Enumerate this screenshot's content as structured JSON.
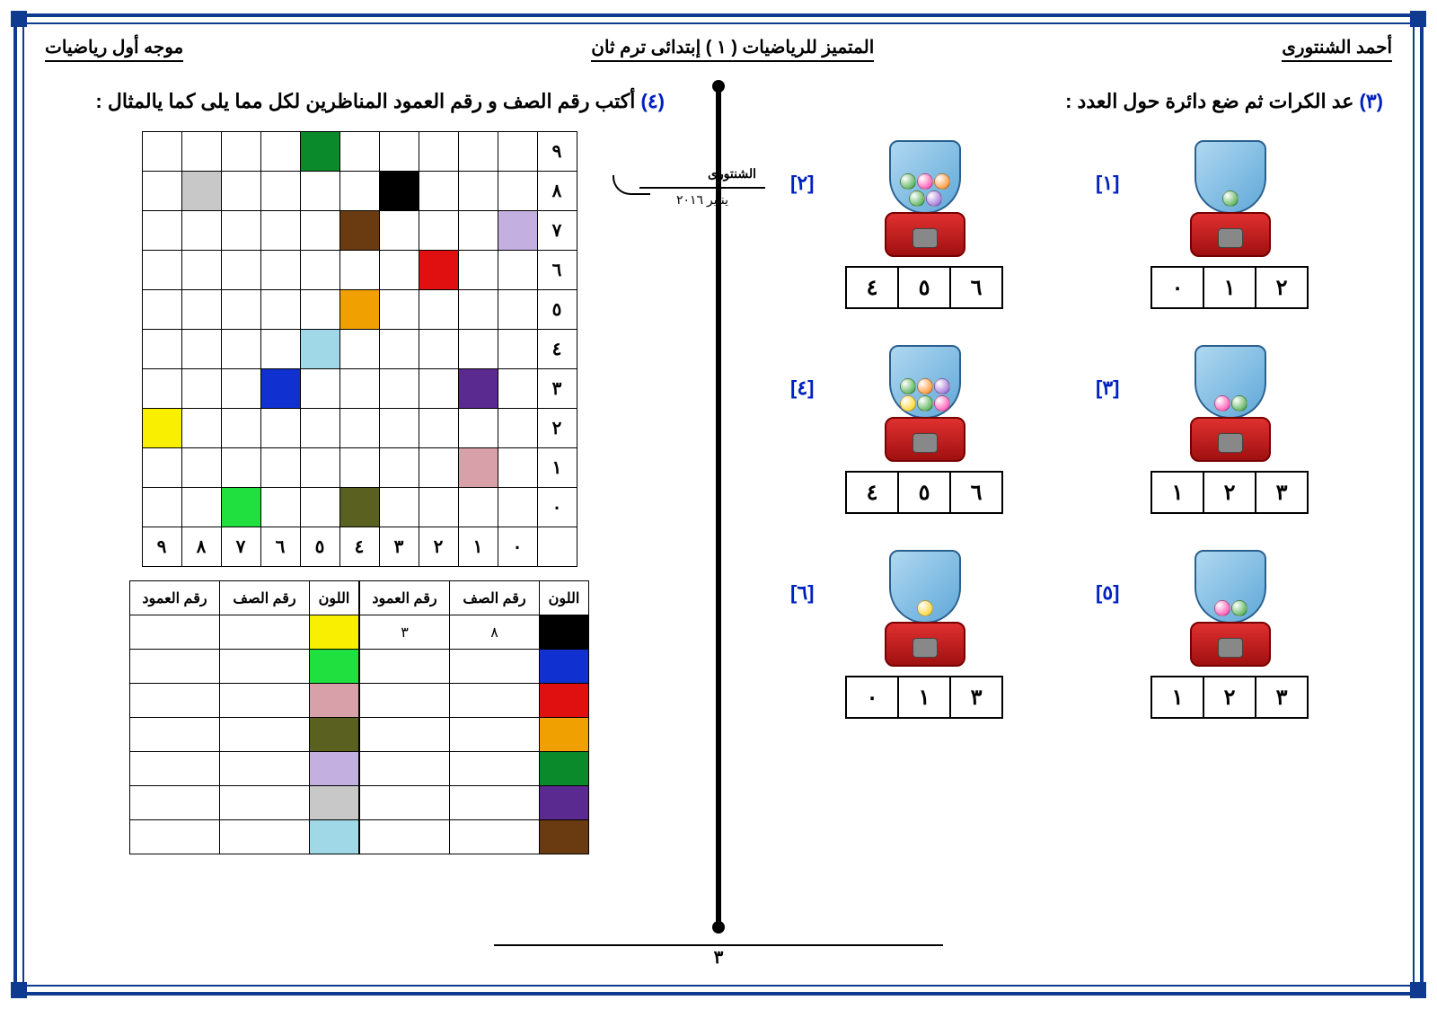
{
  "header": {
    "author": "أحمد الشنتورى",
    "title": "المتميز للرياضيات ( ١ )  إبتدائى ترم  ثان",
    "role": "موجه أول رياضيات"
  },
  "q3": {
    "num": "(٣)",
    "title": "عد الكرات ثم ضع دائرة حول العدد :",
    "items": [
      {
        "label": "[١]",
        "balls": [
          "#2a9d2a"
        ],
        "choices": [
          "٢",
          "١",
          "٠"
        ]
      },
      {
        "label": "[٢]",
        "balls": [
          "#ff7a00",
          "#ff2aa0",
          "#2a9d2a",
          "#8a4fd0",
          "#2a9d2a"
        ],
        "choices": [
          "٦",
          "٥",
          "٤"
        ]
      },
      {
        "label": "[٣]",
        "balls": [
          "#2a9d2a",
          "#ff2aa0"
        ],
        "choices": [
          "٣",
          "٢",
          "١"
        ]
      },
      {
        "label": "[٤]",
        "balls": [
          "#8a4fd0",
          "#ff7a00",
          "#2a9d2a",
          "#ff2aa0",
          "#2a9d2a",
          "#ffcc00"
        ],
        "choices": [
          "٦",
          "٥",
          "٤"
        ]
      },
      {
        "label": "[٥]",
        "balls": [
          "#2a9d2a",
          "#ff2aa0"
        ],
        "choices": [
          "٣",
          "٢",
          "١"
        ]
      },
      {
        "label": "[٦]",
        "balls": [
          "#ffcc00"
        ],
        "choices": [
          "٣",
          "١",
          "٠"
        ]
      }
    ]
  },
  "q4": {
    "num": "(٤)",
    "title": "أكتب رقم الصف و رقم العمود المناظرين لكل مما يلى  كما يالمثال :",
    "grid": {
      "cols_label": [
        "٠",
        "١",
        "٢",
        "٣",
        "٤",
        "٥",
        "٦",
        "٧",
        "٨",
        "٩"
      ],
      "rows_label": [
        "٩",
        "٨",
        "٧",
        "٦",
        "٥",
        "٤",
        "٣",
        "٢",
        "١",
        "٠"
      ],
      "cells": [
        {
          "r": 0,
          "c": 5,
          "color": "#0a8a2a"
        },
        {
          "r": 1,
          "c": 3,
          "color": "#000000"
        },
        {
          "r": 1,
          "c": 8,
          "color": "#c8c8c8"
        },
        {
          "r": 2,
          "c": 0,
          "color": "#c4b0e0"
        },
        {
          "r": 2,
          "c": 4,
          "color": "#6a3a10"
        },
        {
          "r": 3,
          "c": 2,
          "color": "#e01010"
        },
        {
          "r": 4,
          "c": 4,
          "color": "#f0a000"
        },
        {
          "r": 5,
          "c": 5,
          "color": "#a0d8e8"
        },
        {
          "r": 6,
          "c": 1,
          "color": "#5a2a90"
        },
        {
          "r": 6,
          "c": 6,
          "color": "#1030d0"
        },
        {
          "r": 7,
          "c": 9,
          "color": "#f8f000"
        },
        {
          "r": 8,
          "c": 1,
          "color": "#d8a0a8"
        },
        {
          "r": 9,
          "c": 4,
          "color": "#5a6020"
        },
        {
          "r": 9,
          "c": 7,
          "color": "#20e040"
        }
      ]
    },
    "answers": {
      "headers": [
        "اللون",
        "رقم الصف",
        "رقم العمود"
      ],
      "right": [
        {
          "color": "#000000",
          "row": "٨",
          "col": "٣"
        },
        {
          "color": "#1030d0",
          "row": "",
          "col": ""
        },
        {
          "color": "#e01010",
          "row": "",
          "col": ""
        },
        {
          "color": "#f0a000",
          "row": "",
          "col": ""
        },
        {
          "color": "#0a8a2a",
          "row": "",
          "col": ""
        },
        {
          "color": "#5a2a90",
          "row": "",
          "col": ""
        },
        {
          "color": "#6a3a10",
          "row": "",
          "col": ""
        }
      ],
      "left": [
        {
          "color": "#f8f000",
          "row": "",
          "col": ""
        },
        {
          "color": "#20e040",
          "row": "",
          "col": ""
        },
        {
          "color": "#d8a0a8",
          "row": "",
          "col": ""
        },
        {
          "color": "#5a6020",
          "row": "",
          "col": ""
        },
        {
          "color": "#c4b0e0",
          "row": "",
          "col": ""
        },
        {
          "color": "#c8c8c8",
          "row": "",
          "col": ""
        },
        {
          "color": "#a0d8e8",
          "row": "",
          "col": ""
        }
      ]
    }
  },
  "signature": {
    "text": "الشنتورى",
    "date": "يناير ٢٠١٦"
  },
  "page_num": "٣"
}
